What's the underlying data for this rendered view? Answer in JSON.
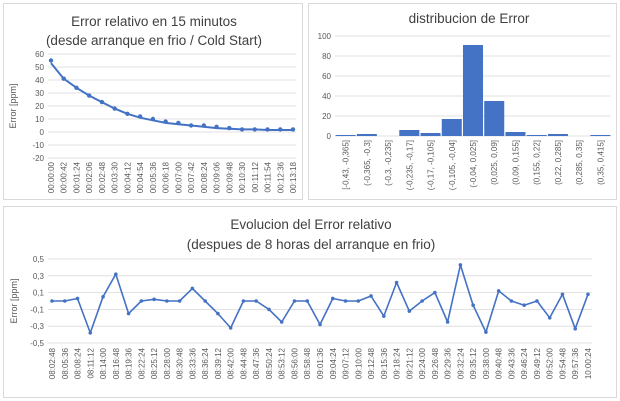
{
  "chart_data": [
    {
      "id": "cold-start",
      "type": "line",
      "title": "Error relativo en 15 minutos",
      "subtitle": "(desde arranque en frio / Cold Start)",
      "xlabel": "",
      "ylabel": "Error [ppm]",
      "ylim": [
        -20,
        60
      ],
      "yticks": [
        -20,
        -10,
        0,
        10,
        20,
        30,
        40,
        50,
        60
      ],
      "categories": [
        "00:00:00",
        "00:00:42",
        "00:01:24",
        "00:02:06",
        "00:02:48",
        "00:03:30",
        "00:04:12",
        "00:04:54",
        "00:05:36",
        "00:06:18",
        "00:07:00",
        "00:07:42",
        "00:08:24",
        "00:09:06",
        "00:09:48",
        "00:10:30",
        "00:11:12",
        "00:11:54",
        "00:12:36",
        "00:13:18"
      ],
      "values": [
        53,
        41,
        34,
        28,
        23,
        18,
        14,
        11,
        9,
        7,
        6,
        5,
        4,
        3,
        2.5,
        2,
        2,
        1.5,
        1.5,
        1.5
      ],
      "markers": [
        55,
        41,
        34,
        28,
        23,
        18,
        14,
        12,
        10,
        8,
        7,
        5,
        5,
        4,
        3,
        2,
        2,
        2,
        2,
        2
      ],
      "color": "#4472c4",
      "grid": true
    },
    {
      "id": "histogram",
      "type": "bar",
      "title": "distribucion de Error",
      "xlabel": "",
      "ylabel": "",
      "ylim": [
        0,
        100
      ],
      "yticks": [
        0,
        20,
        40,
        60,
        80,
        100
      ],
      "categories": [
        "[-0,43, -0,365]",
        "(-0,365, -0,3]",
        "(-0,3, -0,235]",
        "(-0,235, -0,17]",
        "(-0,17, -0,105]",
        "(-0,105, -0,04]",
        "(-0,04, 0,025]",
        "(0,025, 0,09]",
        "(0,09, 0,155]",
        "(0,155, 0,22]",
        "(0,22, 0,285]",
        "(0,285, 0,35]",
        "(0,35, 0,415]"
      ],
      "values": [
        1,
        2,
        0,
        6,
        3,
        17,
        91,
        35,
        4,
        1,
        2,
        0,
        1
      ],
      "color": "#4472c4",
      "grid": true
    },
    {
      "id": "after-8h",
      "type": "line",
      "title": "Evolucion del Error relativo",
      "subtitle": "(despues de 8 horas del arranque en frio)",
      "xlabel": "",
      "ylabel": "Error [ppm]",
      "ylim": [
        -0.5,
        0.5
      ],
      "yticks": [
        -0.5,
        -0.3,
        -0.1,
        0.1,
        0.3,
        0.5
      ],
      "ytick_labels": [
        "-0,5",
        "-0,3",
        "-0,1",
        "0,1",
        "0,3",
        "0,5"
      ],
      "categories": [
        "08:02:48",
        "08:05:36",
        "08:08:24",
        "08:11:12",
        "08:14:00",
        "08:16:48",
        "08:19:36",
        "08:22:24",
        "08:25:12",
        "08:28:00",
        "08:30:48",
        "08:33:36",
        "08:36:24",
        "08:39:12",
        "08:42:00",
        "08:44:48",
        "08:47:36",
        "08:50:24",
        "08:53:12",
        "08:56:00",
        "08:58:48",
        "09:01:36",
        "09:04:24",
        "09:07:12",
        "09:10:00",
        "09:12:48",
        "09:15:36",
        "09:18:24",
        "09:21:12",
        "09:24:00",
        "09:26:48",
        "09:29:36",
        "09:32:24",
        "09:35:12",
        "09:38:00",
        "09:40:48",
        "09:43:36",
        "09:46:24",
        "09:49:12",
        "09:52:00",
        "09:54:48",
        "09:57:36",
        "10:00:24"
      ],
      "values": [
        0.0,
        0.0,
        0.03,
        -0.38,
        0.05,
        0.32,
        -0.15,
        0.0,
        0.02,
        0.0,
        0.0,
        0.15,
        0.0,
        -0.15,
        -0.32,
        0.0,
        0.0,
        -0.1,
        -0.25,
        0.0,
        0.0,
        -0.28,
        0.03,
        0.0,
        0.0,
        0.06,
        -0.18,
        0.22,
        -0.12,
        0.0,
        0.1,
        -0.25,
        0.43,
        -0.05,
        -0.37,
        0.12,
        0.0,
        -0.05,
        0.0,
        -0.2,
        0.08,
        -0.33,
        0.08
      ],
      "color": "#4472c4",
      "grid": true
    }
  ]
}
